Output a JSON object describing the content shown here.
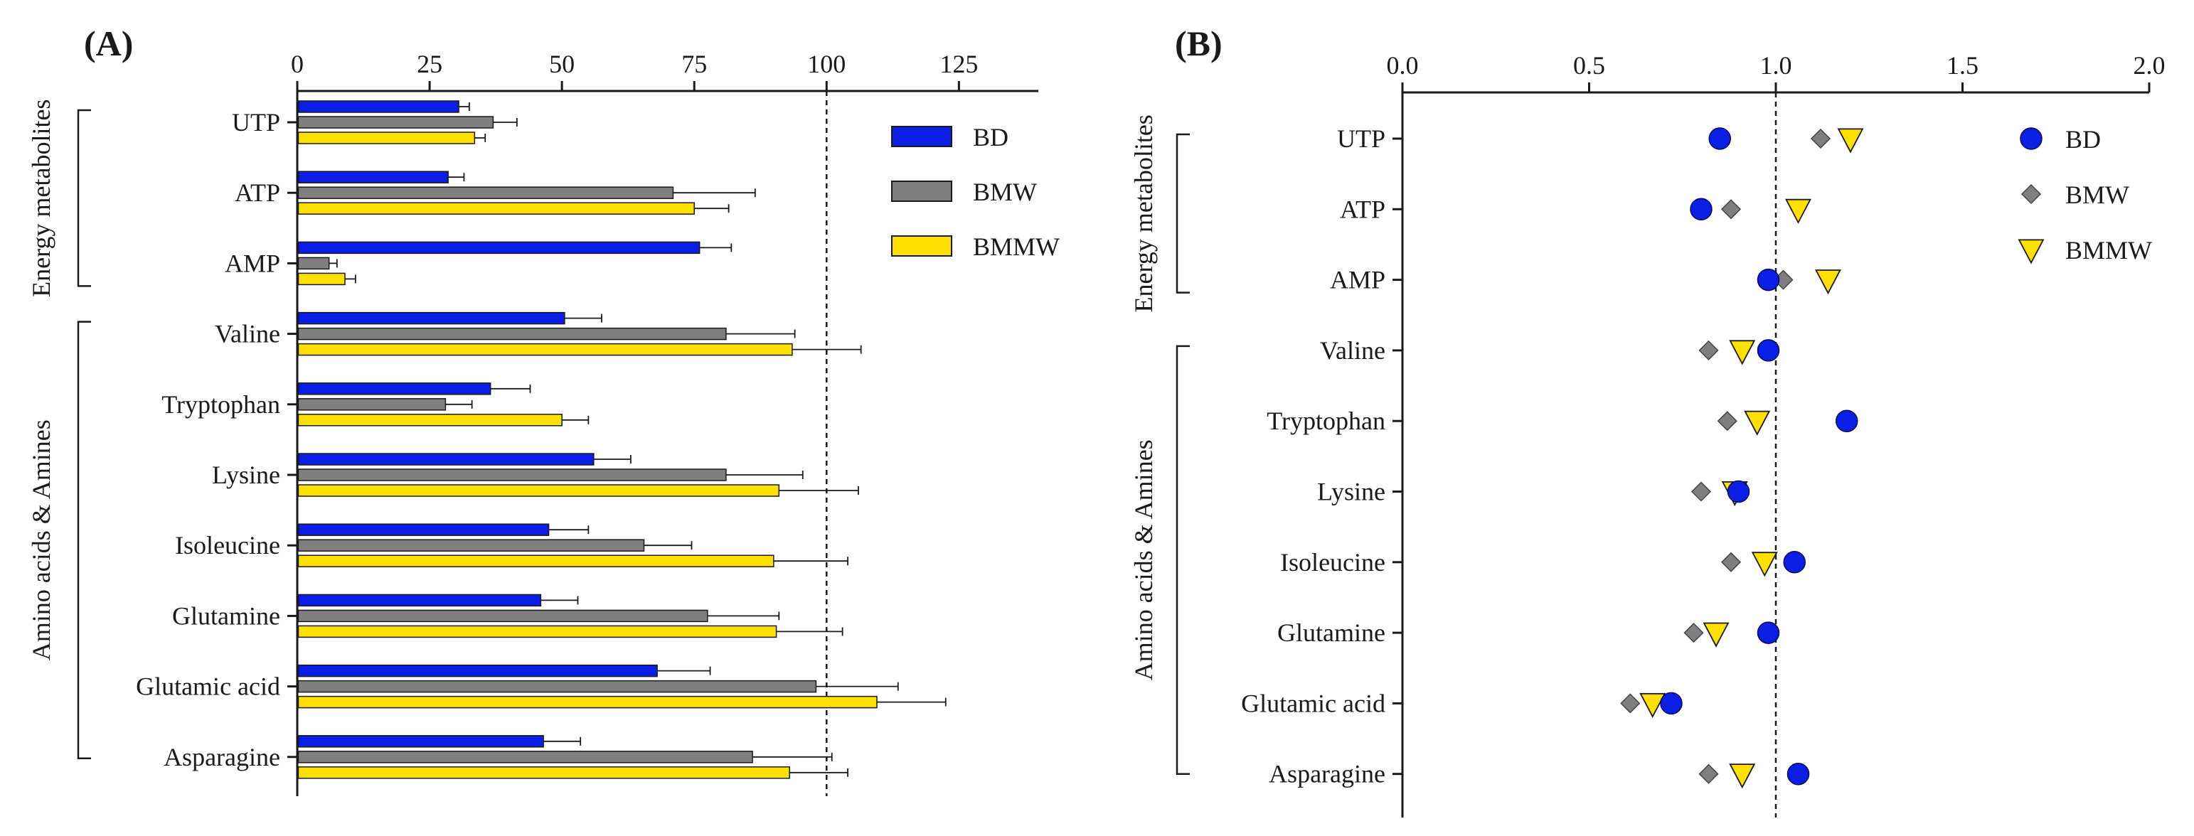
{
  "colors": {
    "BD": "#0a1ee6",
    "BMW": "#7f7f7f",
    "BMMW": "#ffe000",
    "axis": "#1a1a1a"
  },
  "chart_data": [
    {
      "panel_label": "(A)",
      "type": "bar",
      "orientation": "horizontal",
      "grid": false,
      "reference_line_x": 100,
      "legend_position": "top-right",
      "xlim": [
        0,
        140
      ],
      "xticks": [
        "0",
        "25",
        "50",
        "75",
        "100",
        "125"
      ],
      "categories": [
        "UTP",
        "ATP",
        "AMP",
        "Valine",
        "Tryptophan",
        "Lysine",
        "Isoleucine",
        "Glutamine",
        "Glutamic acid",
        "Asparagine"
      ],
      "groups": [
        {
          "label": "Energy metabolites",
          "categories": [
            "UTP",
            "ATP",
            "AMP"
          ]
        },
        {
          "label": "Amino acids & Amines",
          "categories": [
            "Valine",
            "Tryptophan",
            "Lysine",
            "Isoleucine",
            "Glutamine",
            "Glutamic acid",
            "Asparagine"
          ]
        }
      ],
      "series": [
        {
          "name": "BD",
          "values": [
            30.5,
            28.5,
            76,
            50.5,
            36.5,
            56,
            47.5,
            46,
            68,
            46.5
          ],
          "errors": [
            2,
            3,
            6,
            7,
            7.5,
            7,
            7.5,
            7,
            10,
            7
          ]
        },
        {
          "name": "BMW",
          "values": [
            37,
            71,
            6,
            81,
            28,
            81,
            65.5,
            77.5,
            98,
            86
          ],
          "errors": [
            4.5,
            15.5,
            1.5,
            13,
            5,
            14.5,
            9,
            13.5,
            15.5,
            15
          ]
        },
        {
          "name": "BMMW",
          "values": [
            33.5,
            75,
            9,
            93.5,
            50,
            91,
            90,
            90.5,
            109.5,
            93
          ],
          "errors": [
            2,
            6.5,
            2,
            13,
            5,
            15,
            14,
            12.5,
            13,
            11
          ]
        }
      ]
    },
    {
      "panel_label": "(B)",
      "type": "scatter",
      "orientation": "horizontal",
      "grid": false,
      "reference_line_x": 1.0,
      "legend_position": "top-right",
      "xlim": [
        0,
        2
      ],
      "xticks": [
        "0.0",
        "0.5",
        "1.0",
        "1.5",
        "2.0"
      ],
      "categories": [
        "UTP",
        "ATP",
        "AMP",
        "Valine",
        "Tryptophan",
        "Lysine",
        "Isoleucine",
        "Glutamine",
        "Glutamic acid",
        "Asparagine"
      ],
      "groups": [
        {
          "label": "Energy metabolites",
          "categories": [
            "UTP",
            "ATP",
            "AMP"
          ]
        },
        {
          "label": "Amino acids & Amines",
          "categories": [
            "Valine",
            "Tryptophan",
            "Lysine",
            "Isoleucine",
            "Glutamine",
            "Glutamic acid",
            "Asparagine"
          ]
        }
      ],
      "series": [
        {
          "name": "BD",
          "marker": "circle",
          "values": [
            0.85,
            0.8,
            0.98,
            0.98,
            1.19,
            0.9,
            1.05,
            0.98,
            0.72,
            1.06
          ]
        },
        {
          "name": "BMW",
          "marker": "diamond",
          "values": [
            1.12,
            0.88,
            1.02,
            0.82,
            0.87,
            0.8,
            0.88,
            0.78,
            0.61,
            0.82
          ]
        },
        {
          "name": "BMMW",
          "marker": "triangle-down",
          "values": [
            1.2,
            1.06,
            1.14,
            0.91,
            0.95,
            0.89,
            0.97,
            0.84,
            0.67,
            0.91
          ]
        }
      ]
    }
  ]
}
